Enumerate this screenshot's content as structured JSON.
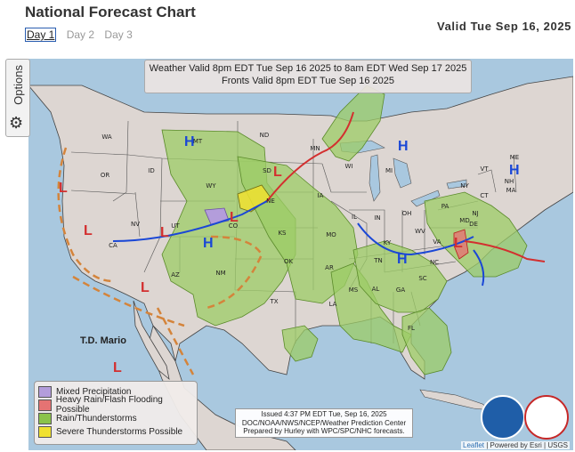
{
  "title": "National Forecast Chart",
  "valid": "Valid Tue Sep 16, 2025",
  "days": [
    "Day 1",
    "Day 2",
    "Day 3"
  ],
  "options_label": "Options",
  "header_line1": "Weather Valid 8pm EDT Tue Sep 16 2025 to 8am EDT Wed Sep 17 2025",
  "header_line2": "Fronts Valid 8pm EDT Tue Sep 16 2025",
  "storm_label": "T.D. Mario",
  "legend": [
    {
      "label": "Mixed Precipitation",
      "color": "#b39ddb"
    },
    {
      "label": "Heavy Rain/Flash Flooding Possible",
      "color": "#e57373"
    },
    {
      "label": "Rain/Thunderstorms",
      "color": "#8bc34a"
    },
    {
      "label": "Severe Thunderstorms Possible",
      "color": "#f0e130"
    }
  ],
  "issued_line1": "Issued  4:37 PM EDT  Tue, Sep 16, 2025",
  "issued_line2": "DOC/NOAA/NWS/NCEP/Weather Prediction Center",
  "issued_line3": "Prepared by Hurley with WPC/SPC/NHC forecasts.",
  "attribution_leaflet": "Leaflet",
  "attribution_rest": " | Powered by Esri | USGS",
  "states": [
    "WA",
    "OR",
    "ID",
    "MT",
    "WY",
    "NV",
    "UT",
    "CO",
    "CA",
    "AZ",
    "NM",
    "ND",
    "SD",
    "NE",
    "KS",
    "OK",
    "TX",
    "MN",
    "IA",
    "MO",
    "AR",
    "LA",
    "WI",
    "IL",
    "MI",
    "IN",
    "OH",
    "KY",
    "TN",
    "MS",
    "AL",
    "GA",
    "FL",
    "SC",
    "NC",
    "VA",
    "WV",
    "PA",
    "NY",
    "VT",
    "NH",
    "ME",
    "MA",
    "CT",
    "NJ",
    "DE",
    "MD"
  ],
  "highs": [
    "H",
    "H",
    "H",
    "H",
    "H"
  ],
  "lows": [
    "L",
    "L",
    "L",
    "L",
    "L",
    "L",
    "L",
    "L"
  ],
  "logos": {
    "noaa": "NOAA",
    "nws": "NWS"
  }
}
